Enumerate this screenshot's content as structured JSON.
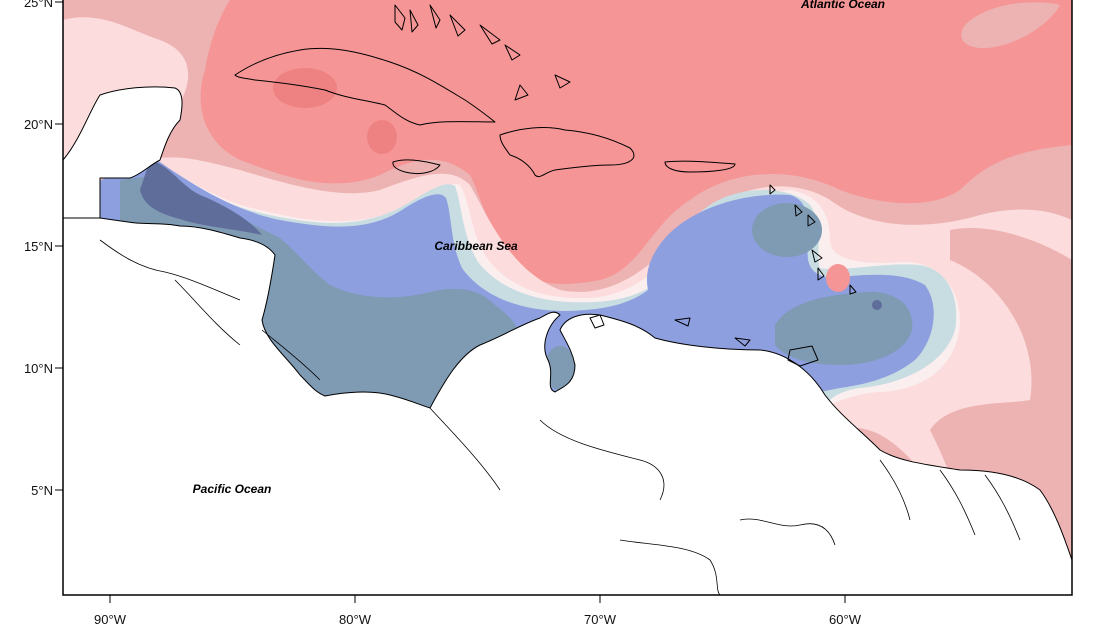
{
  "map": {
    "ocean_labels": {
      "atlantic": "Atlantic Ocean",
      "caribbean": "Caribbean Sea",
      "pacific": "Pacific Ocean"
    },
    "lat_ticks": [
      "25°N",
      "20°N",
      "15°N",
      "10°N",
      "5°N"
    ],
    "lon_ticks": [
      "90°W",
      "80°W",
      "70°W",
      "60°W"
    ],
    "colors": {
      "red_strong": "#f59595",
      "red_mid": "#edb3b3",
      "pink_light": "#fcdcdc",
      "pale": "#fbeeee",
      "light_blue": "#c8dde2",
      "blue": "#8e9fe0",
      "slate": "#7f9ab3",
      "dark_slate": "#5e6d99",
      "red_core": "#ee8282",
      "land": "#ffffff"
    }
  }
}
